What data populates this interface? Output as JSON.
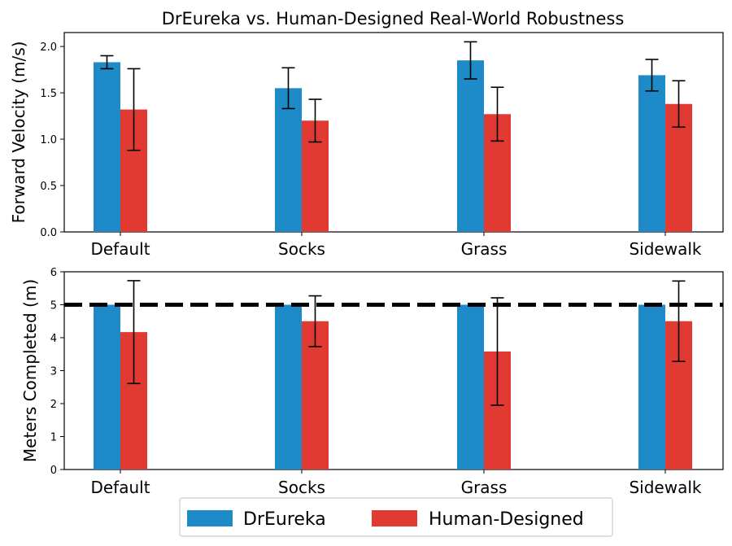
{
  "title": "DrEureka vs. Human-Designed Real-World Robustness",
  "colors": {
    "DrEureka": "#1f8ac8",
    "Human-Designed": "#e03a32"
  },
  "legend": {
    "items": [
      "DrEureka",
      "Human-Designed"
    ],
    "placement": "bottom-center"
  },
  "chart_data": [
    {
      "type": "bar",
      "categories": [
        "Default",
        "Socks",
        "Grass",
        "Sidewalk"
      ],
      "ylabel": "Forward Velocity (m/s)",
      "ylim": [
        0,
        2.15
      ],
      "yticks": [
        "0.0",
        "0.5",
        "1.0",
        "1.5",
        "2.0"
      ],
      "ytick_values": [
        0,
        0.5,
        1.0,
        1.5,
        2.0
      ],
      "series": [
        {
          "name": "DrEureka",
          "values": [
            1.83,
            1.55,
            1.85,
            1.69
          ],
          "err": [
            0.07,
            0.22,
            0.2,
            0.17
          ]
        },
        {
          "name": "Human-Designed",
          "values": [
            1.32,
            1.2,
            1.27,
            1.38
          ],
          "err": [
            0.44,
            0.23,
            0.29,
            0.25
          ]
        }
      ]
    },
    {
      "type": "bar",
      "categories": [
        "Default",
        "Socks",
        "Grass",
        "Sidewalk"
      ],
      "ylabel": "Meters Completed (m)",
      "ylim": [
        0,
        6
      ],
      "yticks": [
        "0",
        "1",
        "2",
        "3",
        "4",
        "5",
        "6"
      ],
      "ytick_values": [
        0,
        1,
        2,
        3,
        4,
        5,
        6
      ],
      "reference_line": 5,
      "series": [
        {
          "name": "DrEureka",
          "values": [
            5,
            5,
            5,
            5
          ],
          "err": [
            0,
            0,
            0,
            0
          ]
        },
        {
          "name": "Human-Designed",
          "values": [
            4.17,
            4.5,
            3.58,
            4.5
          ],
          "err": [
            1.56,
            0.77,
            1.63,
            1.22
          ]
        }
      ]
    }
  ]
}
